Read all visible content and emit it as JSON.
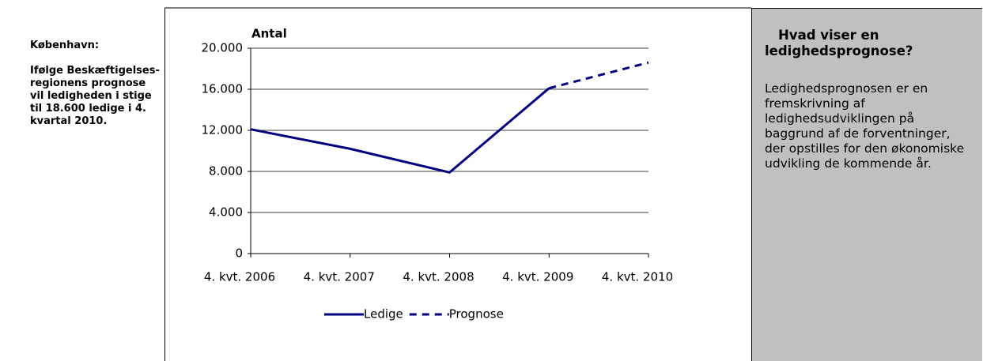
{
  "sidebar": {
    "heading": "København:",
    "text": "Ifølge Beskæftigelses-regionens prognose vil ledigheden i stige til 18.600 ledige i 4. kvartal 2010."
  },
  "chart_data": {
    "type": "line",
    "y_label": "Antal",
    "categories": [
      "4. kvt. 2006",
      "4. kvt. 2007",
      "4. kvt. 2008",
      "4. kvt. 2009",
      "4. kvt. 2010"
    ],
    "series": [
      {
        "name": "Ledige",
        "color": "#000080",
        "dash": false,
        "values": [
          12100,
          10200,
          7900,
          16100,
          null
        ]
      },
      {
        "name": "Prognose",
        "color": "#000080",
        "dash": true,
        "values": [
          null,
          null,
          null,
          16100,
          18600
        ]
      }
    ],
    "ylim": [
      0,
      20000
    ],
    "yticks": [
      0,
      {
        "value": 4000,
        "label": "4.000"
      },
      {
        "value": 8000,
        "label": "8.000"
      },
      {
        "value": 12000,
        "label": "12.000"
      },
      {
        "value": 16000,
        "label": "16.000"
      },
      {
        "value": 20000,
        "label": "20.000"
      }
    ],
    "grid": true,
    "legend": "bottom"
  },
  "info": {
    "heading": "Hvad viser en ledighedsprognose?",
    "text": "Ledighedsprognosen er en fremskrivning af ledighedsudviklingen på baggrund af de forventninger, der opstilles for den økonomiske udvikling de kommende år."
  }
}
